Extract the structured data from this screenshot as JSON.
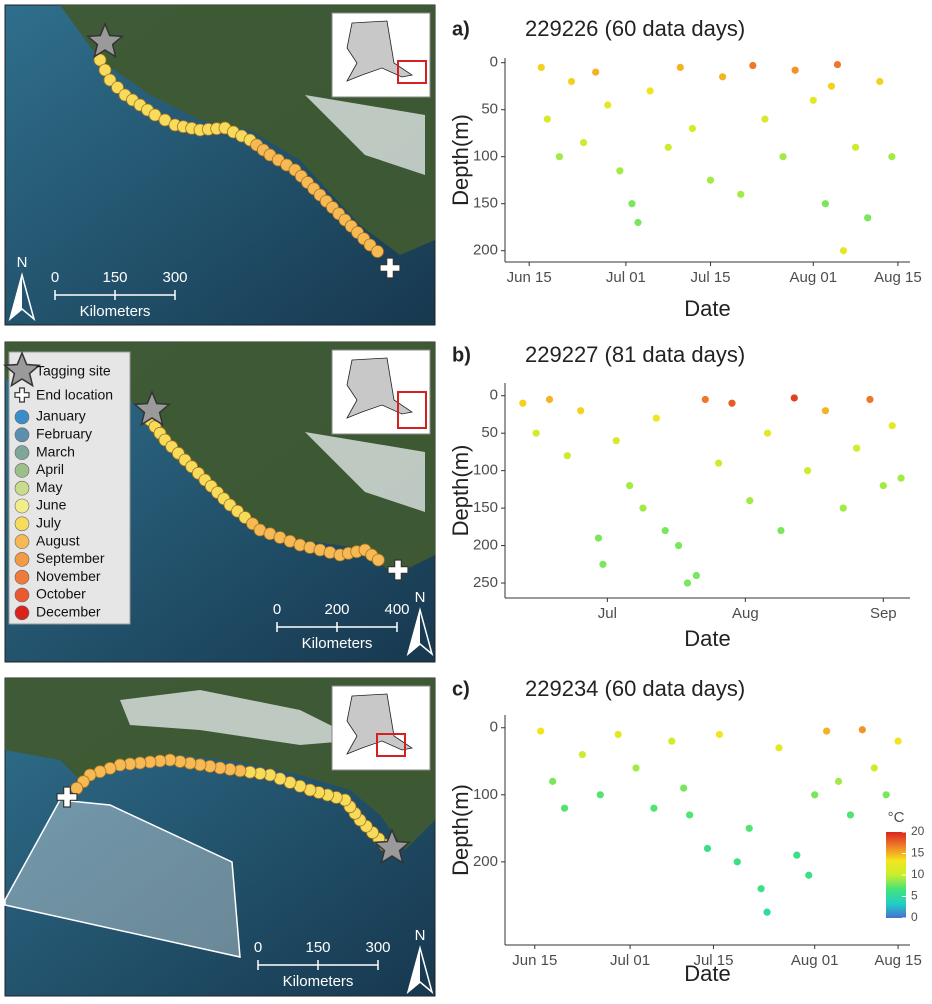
{
  "chart_data": [
    {
      "type": "scatter",
      "label": "a)",
      "title": "229226 (60 data days)",
      "x_label": "Date",
      "y_label": "Depth(m)",
      "x": [
        "Jun 17",
        "Jun 18",
        "Jun 20",
        "Jun 22",
        "Jun 24",
        "Jun 26",
        "Jun 28",
        "Jun 30",
        "Jul 02",
        "Jul 03",
        "Jul 05",
        "Jul 08",
        "Jul 10",
        "Jul 12",
        "Jul 15",
        "Jul 17",
        "Jul 20",
        "Jul 22",
        "Jul 24",
        "Jul 27",
        "Jul 29",
        "Aug 01",
        "Aug 03",
        "Aug 04",
        "Aug 05",
        "Aug 06",
        "Aug 08",
        "Aug 10",
        "Aug 12",
        "Aug 14"
      ],
      "y": [
        5,
        60,
        100,
        20,
        85,
        10,
        45,
        115,
        150,
        170,
        30,
        90,
        5,
        70,
        125,
        15,
        140,
        3,
        60,
        100,
        8,
        40,
        150,
        25,
        2,
        200,
        90,
        165,
        20,
        100
      ],
      "temperature": [
        14,
        11,
        9,
        14,
        10,
        15,
        12,
        9,
        8,
        8,
        13,
        10,
        15,
        11,
        9,
        15,
        9,
        17,
        11,
        9,
        16,
        12,
        8,
        14,
        17,
        12,
        10,
        8,
        14,
        9
      ],
      "xlim": [
        "Jun 11",
        "Aug 17"
      ],
      "xticks": [
        "Jun 15",
        "Jul 01",
        "Jul 15",
        "Aug 01",
        "Aug 15"
      ],
      "ylim": [
        -5,
        212
      ],
      "yticks": [
        0,
        50,
        100,
        150,
        200
      ],
      "invert_y": true,
      "zlim": [
        0,
        20
      ],
      "colorscale": [
        "#4a6fd1",
        "#1fd0c5",
        "#43e37a",
        "#c8ee2e",
        "#f4e51d",
        "#f0802a",
        "#d7261e"
      ]
    },
    {
      "type": "scatter",
      "label": "b)",
      "title": "229227 (81 data days)",
      "x_label": "Date",
      "y_label": "Depth(m)",
      "x": [
        "Jun 12",
        "Jun 15",
        "Jun 18",
        "Jun 22",
        "Jun 25",
        "Jun 29",
        "Jun 30",
        "Jul 03",
        "Jul 06",
        "Jul 09",
        "Jul 12",
        "Jul 14",
        "Jul 17",
        "Jul 19",
        "Jul 21",
        "Jul 23",
        "Jul 26",
        "Jul 29",
        "Aug 02",
        "Aug 06",
        "Aug 09",
        "Aug 12",
        "Aug 15",
        "Aug 19",
        "Aug 23",
        "Aug 26",
        "Aug 29",
        "Sep 01",
        "Sep 03",
        "Sep 05"
      ],
      "y": [
        10,
        50,
        5,
        80,
        20,
        190,
        225,
        60,
        120,
        150,
        30,
        180,
        200,
        250,
        240,
        5,
        90,
        10,
        140,
        50,
        180,
        3,
        100,
        20,
        150,
        70,
        5,
        120,
        40,
        110
      ],
      "temperature": [
        14,
        11,
        15,
        10,
        14,
        8,
        8,
        11,
        9,
        9,
        13,
        8,
        8,
        8,
        8,
        17,
        10,
        18,
        9,
        12,
        8,
        19,
        10,
        15,
        9,
        11,
        17,
        9,
        12,
        9
      ],
      "xlim": [
        "Jun 08",
        "Sep 07"
      ],
      "xticks": [
        {
          "value": "Jul 01",
          "label": "Jul"
        },
        {
          "value": "Aug 01",
          "label": "Aug"
        },
        {
          "value": "Sep 01",
          "label": "Sep"
        }
      ],
      "ylim": [
        -17,
        270
      ],
      "yticks": [
        0,
        50,
        100,
        150,
        200,
        250
      ],
      "invert_y": true,
      "zlim": [
        0,
        20
      ],
      "colorscale": [
        "#4a6fd1",
        "#1fd0c5",
        "#43e37a",
        "#c8ee2e",
        "#f4e51d",
        "#f0802a",
        "#d7261e"
      ]
    },
    {
      "type": "scatter",
      "label": "c)",
      "title": "229234 (60 data days)",
      "x_label": "Date",
      "y_label": "Depth(m)",
      "x": [
        "Jun 16",
        "Jun 18",
        "Jun 20",
        "Jun 23",
        "Jun 26",
        "Jun 29",
        "Jul 02",
        "Jul 05",
        "Jul 08",
        "Jul 10",
        "Jul 11",
        "Jul 14",
        "Jul 16",
        "Jul 19",
        "Jul 21",
        "Jul 23",
        "Jul 24",
        "Jul 26",
        "Jul 29",
        "Jul 31",
        "Aug 01",
        "Aug 03",
        "Aug 05",
        "Aug 07",
        "Aug 09",
        "Aug 11",
        "Aug 13",
        "Aug 15"
      ],
      "y": [
        5,
        80,
        120,
        40,
        100,
        10,
        60,
        120,
        20,
        90,
        130,
        180,
        10,
        200,
        150,
        240,
        275,
        30,
        190,
        220,
        100,
        5,
        80,
        130,
        3,
        60,
        100,
        20
      ],
      "temperature": [
        13,
        8,
        7,
        10,
        7,
        12,
        9,
        7,
        11,
        8,
        7,
        6,
        13,
        6,
        7,
        6,
        5,
        12,
        6,
        6,
        8,
        15,
        9,
        7,
        16,
        10,
        8,
        13
      ],
      "xlim": [
        "Jun 10",
        "Aug 17"
      ],
      "xticks": [
        "Jun 15",
        "Jul 01",
        "Jul 15",
        "Aug 01",
        "Aug 15"
      ],
      "ylim": [
        -19,
        324
      ],
      "yticks": [
        0,
        100,
        200
      ],
      "invert_y": true,
      "zlim": [
        0,
        20
      ],
      "colorscale": [
        "#4a6fd1",
        "#1fd0c5",
        "#43e37a",
        "#c8ee2e",
        "#f4e51d",
        "#f0802a",
        "#d7261e"
      ],
      "colorbar": {
        "title": "°C",
        "ticks": [
          0,
          5,
          10,
          15,
          20
        ]
      }
    }
  ],
  "maps": [
    {
      "scale": {
        "labels": [
          0,
          150,
          300
        ],
        "unit": "Kilometers"
      },
      "north": "N"
    },
    {
      "scale": {
        "labels": [
          0,
          200,
          400
        ],
        "unit": "Kilometers"
      },
      "north": "N",
      "legend": {
        "symbols": [
          "Tagging site",
          "End location"
        ],
        "months": [
          {
            "label": "January",
            "color": "#3a8dc8"
          },
          {
            "label": "February",
            "color": "#5b8fb0"
          },
          {
            "label": "March",
            "color": "#7fa69a"
          },
          {
            "label": "April",
            "color": "#9dbf8a"
          },
          {
            "label": "May",
            "color": "#c9dc8c"
          },
          {
            "label": "June",
            "color": "#f2ed8a"
          },
          {
            "label": "July",
            "color": "#f7dc5c"
          },
          {
            "label": "August",
            "color": "#f7b954"
          },
          {
            "label": "September",
            "color": "#f59a44"
          },
          {
            "label": "November",
            "color": "#f07a3a"
          },
          {
            "label": "October",
            "color": "#ea5a30"
          },
          {
            "label": "December",
            "color": "#d9221c"
          }
        ]
      }
    },
    {
      "scale": {
        "labels": [
          0,
          150,
          300
        ],
        "unit": "Kilometers"
      },
      "north": "N"
    }
  ]
}
